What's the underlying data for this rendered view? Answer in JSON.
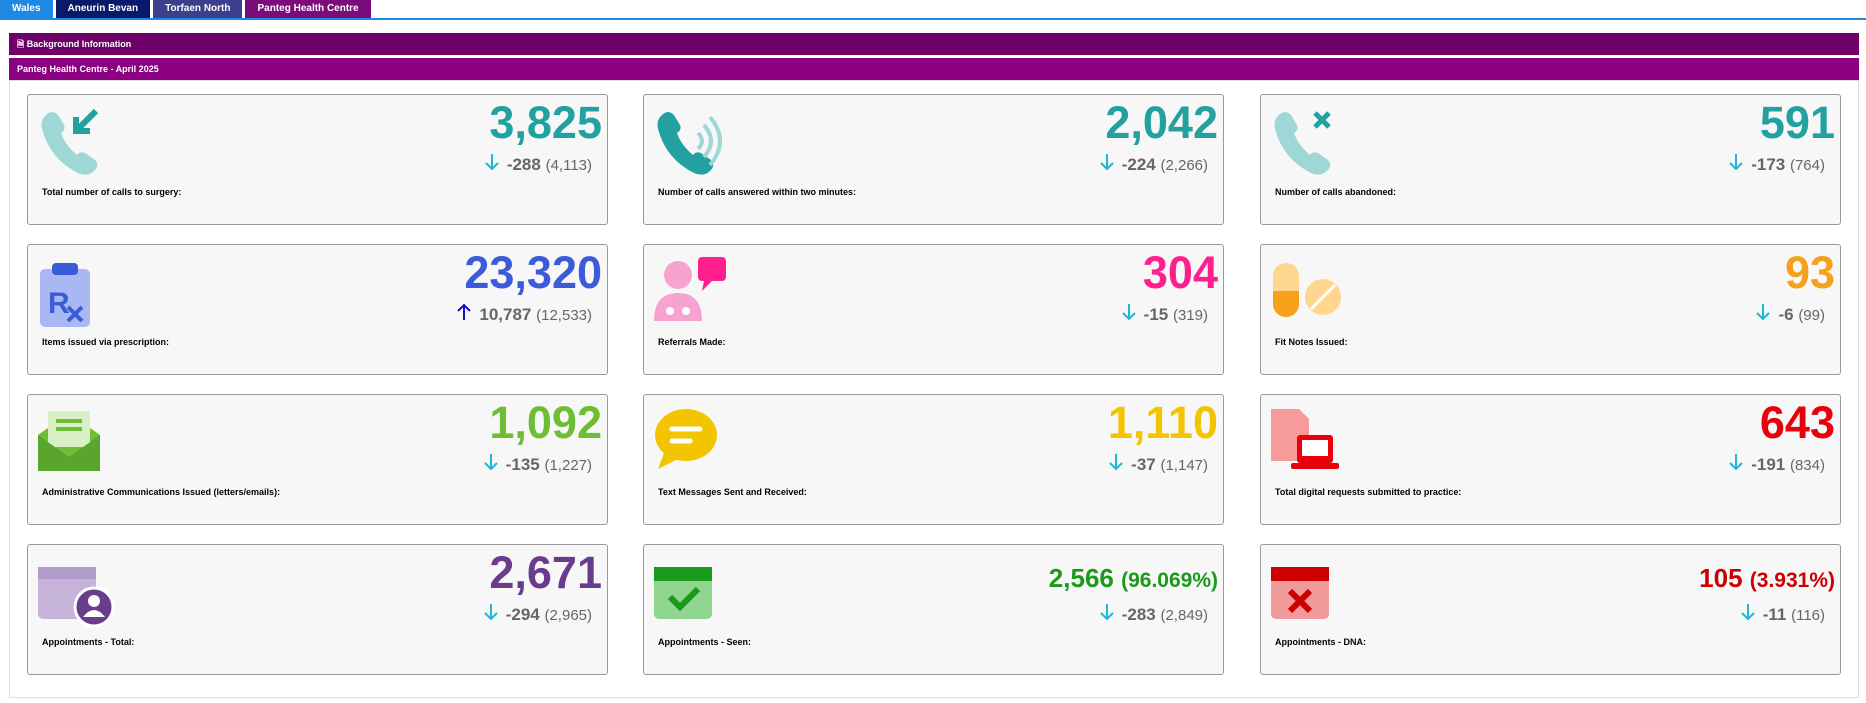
{
  "tabs": [
    "Wales",
    "Aneurin Bevan",
    "Torfaen North",
    "Panteg Health Centre"
  ],
  "tab_colors": [
    "#1e88e5",
    "#0a1a6b",
    "#3b3f8c",
    "#7b0a7b"
  ],
  "section_title": "Background Information",
  "subsection_title": "Panteg Health Centre - April 2025",
  "cards": [
    {
      "label": "Total number of calls to surgery:",
      "value": "3,825",
      "change": "-288",
      "previous": "(4,113)",
      "color": "#23a0a0"
    },
    {
      "label": "Number of calls answered within two minutes:",
      "value": "2,042",
      "change": "-224",
      "previous": "(2,266)",
      "color": "#23a0a0"
    },
    {
      "label": "Number of calls abandoned:",
      "value": "591",
      "change": "-173",
      "previous": "(764)",
      "color": "#23a0a0"
    },
    {
      "label": "Items issued via prescription:",
      "value": "23,320",
      "change": "10,787",
      "previous": "(12,533)",
      "color": "#3b5bd8"
    },
    {
      "label": "Referrals Made:",
      "value": "304",
      "change": "-15",
      "previous": "(319)",
      "color": "#ff1f8e"
    },
    {
      "label": "Fit Notes Issued:",
      "value": "93",
      "change": "-6",
      "previous": "(99)",
      "color": "#f7a01b"
    },
    {
      "label": "Administrative Communications Issued (letters/emails):",
      "value": "1,092",
      "change": "-135",
      "previous": "(1,227)",
      "color": "#6dbe35"
    },
    {
      "label": "Text Messages Sent and Received:",
      "value": "1,110",
      "change": "-37",
      "previous": "(1,147)",
      "color": "#f2c500"
    },
    {
      "label": "Total digital requests submitted to practice:",
      "value": "643",
      "change": "-191",
      "previous": "(834)",
      "color": "#e8000b"
    },
    {
      "label": "Appointments - Total:",
      "value": "2,671",
      "change": "-294",
      "previous": "(2,965)",
      "color": "#6a3d8c"
    },
    {
      "label": "Appointments - Seen:",
      "value": "2,566",
      "percent": "(96.069%)",
      "change": "-283",
      "previous": "(2,849)",
      "color": "#1a9a1a"
    },
    {
      "label": "Appointments - DNA:",
      "value": "105",
      "percent": "(3.931%)",
      "change": "-11",
      "previous": "(116)",
      "color": "#cc0000"
    }
  ]
}
